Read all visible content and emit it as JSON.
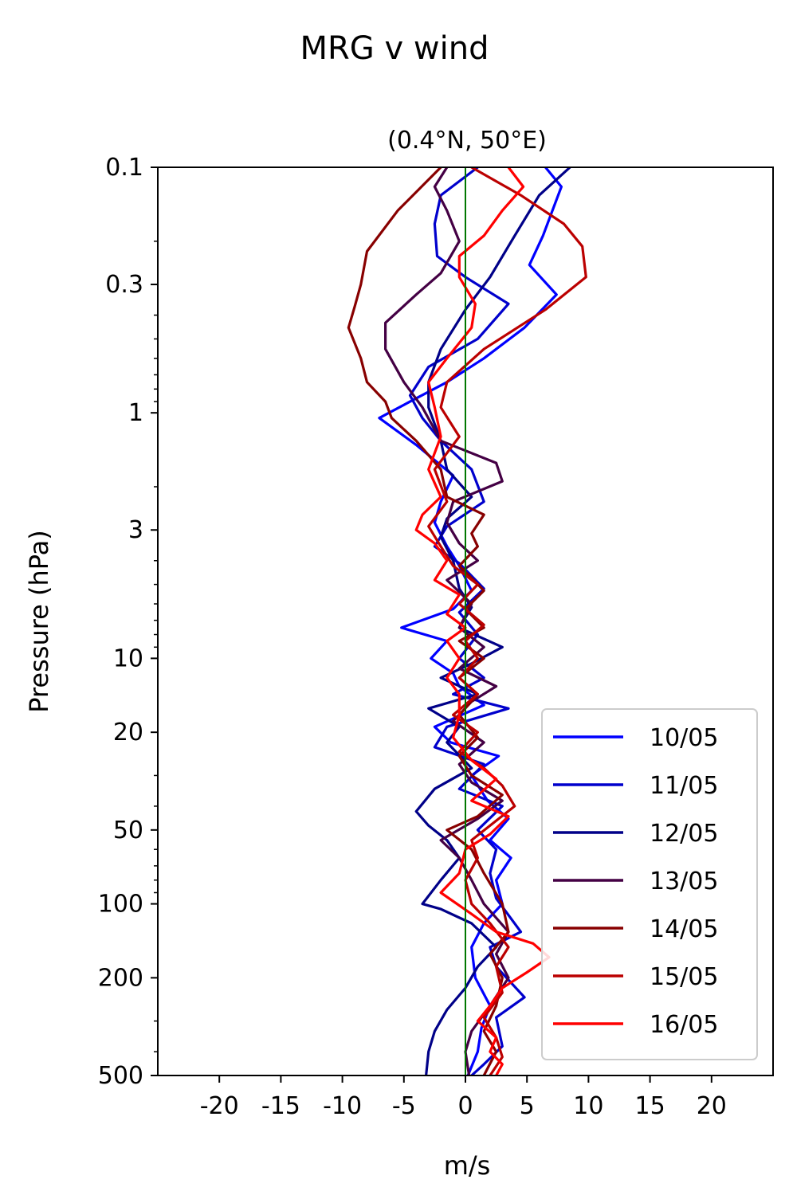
{
  "chart_data": {
    "type": "line",
    "title": "MRG v wind",
    "subtitle": "(0.4°N, 50°E)",
    "xlabel": "m/s",
    "ylabel": "Pressure (hPa)",
    "xlim": [
      -25,
      25
    ],
    "ylim": [
      500,
      0.1
    ],
    "yscale": "log",
    "x_ticks": [
      -20,
      -15,
      -10,
      -5,
      0,
      5,
      10,
      15,
      20
    ],
    "x_tick_labels": [
      "-20",
      "-15",
      "-10",
      "-5",
      "0",
      "5",
      "10",
      "15",
      "20"
    ],
    "y_ticks": [
      0.1,
      0.3,
      1,
      3,
      10,
      20,
      50,
      100,
      200,
      500
    ],
    "y_tick_labels": [
      "0.1",
      "0.3",
      "1",
      "3",
      "10",
      "20",
      "50",
      "100",
      "200",
      "500"
    ],
    "zero_line": {
      "x": 0,
      "color": "#007700"
    },
    "grid": false,
    "legend_position": "bottom-right",
    "series": [
      {
        "name": "10/05",
        "color": "#0000ff",
        "points": [
          [
            6.5,
            0.1
          ],
          [
            7.8,
            0.12
          ],
          [
            6.3,
            0.19
          ],
          [
            5.2,
            0.25
          ],
          [
            7.4,
            0.33
          ],
          [
            4.8,
            0.45
          ],
          [
            1.5,
            0.6
          ],
          [
            -1.5,
            0.75
          ],
          [
            -4.5,
            0.9
          ],
          [
            -7.0,
            1.05
          ],
          [
            -4.0,
            1.35
          ],
          [
            -1.0,
            1.8
          ],
          [
            -2.0,
            2.3
          ],
          [
            -2.5,
            2.8
          ],
          [
            -1.5,
            3.5
          ],
          [
            -0.5,
            4.2
          ],
          [
            0.5,
            5.3
          ],
          [
            -1.0,
            6.3
          ],
          [
            -5.2,
            7.5
          ],
          [
            -1.5,
            8.5
          ],
          [
            -2.8,
            10
          ],
          [
            -1.0,
            11.5
          ],
          [
            -0.5,
            13
          ],
          [
            1.5,
            15.5
          ],
          [
            -2.5,
            19
          ],
          [
            -1.2,
            22
          ],
          [
            2.7,
            25
          ],
          [
            0.5,
            30
          ],
          [
            1.8,
            38
          ],
          [
            3.5,
            45
          ],
          [
            2.0,
            55
          ],
          [
            3.7,
            65
          ],
          [
            2.5,
            80
          ],
          [
            3.0,
            100
          ],
          [
            1.5,
            120
          ],
          [
            0.5,
            150
          ],
          [
            0.8,
            200
          ],
          [
            2.0,
            260
          ],
          [
            1.3,
            320
          ],
          [
            1.0,
            400
          ],
          [
            0.2,
            500
          ]
        ]
      },
      {
        "name": "11/05",
        "color": "#0000cc",
        "points": [
          [
            1.0,
            0.1
          ],
          [
            -2.0,
            0.13
          ],
          [
            -2.5,
            0.17
          ],
          [
            -2.3,
            0.23
          ],
          [
            0,
            0.28
          ],
          [
            3.5,
            0.36
          ],
          [
            1.0,
            0.5
          ],
          [
            -3.0,
            0.65
          ],
          [
            -4.5,
            0.85
          ],
          [
            -3.5,
            1.05
          ],
          [
            -2.0,
            1.3
          ],
          [
            0.5,
            1.7
          ],
          [
            1.5,
            2.3
          ],
          [
            -1.5,
            2.9
          ],
          [
            -2.5,
            3.5
          ],
          [
            -0.5,
            4.1
          ],
          [
            1.5,
            5.2
          ],
          [
            -0.5,
            6.5
          ],
          [
            1.0,
            8
          ],
          [
            -0.5,
            10
          ],
          [
            1.5,
            12
          ],
          [
            -1.0,
            14
          ],
          [
            3.5,
            16
          ],
          [
            -1.5,
            19
          ],
          [
            -2.5,
            23
          ],
          [
            1.5,
            27
          ],
          [
            -0.5,
            34
          ],
          [
            3.0,
            40
          ],
          [
            1.0,
            50
          ],
          [
            2.5,
            60
          ],
          [
            2.0,
            75
          ],
          [
            2.5,
            95
          ],
          [
            4.5,
            130
          ],
          [
            2.0,
            150
          ],
          [
            2.5,
            180
          ],
          [
            4.8,
            240
          ],
          [
            2.5,
            290
          ],
          [
            3.0,
            380
          ],
          [
            1.5,
            450
          ],
          [
            0.5,
            500
          ]
        ]
      },
      {
        "name": "12/05",
        "color": "#000088",
        "points": [
          [
            8.5,
            0.1
          ],
          [
            6.0,
            0.13
          ],
          [
            4.0,
            0.19
          ],
          [
            2.0,
            0.28
          ],
          [
            0,
            0.38
          ],
          [
            -2.0,
            0.55
          ],
          [
            -3.0,
            0.75
          ],
          [
            -3.0,
            0.95
          ],
          [
            -2.0,
            1.3
          ],
          [
            -1.5,
            1.7
          ],
          [
            0.5,
            2.2
          ],
          [
            -1.5,
            2.7
          ],
          [
            -2.0,
            3.2
          ],
          [
            -1.0,
            4.0
          ],
          [
            -0.5,
            5.2
          ],
          [
            0.5,
            6.2
          ],
          [
            -0.5,
            7.5
          ],
          [
            3.0,
            9
          ],
          [
            0.5,
            10.5
          ],
          [
            -2.0,
            12
          ],
          [
            1.0,
            14
          ],
          [
            -3.0,
            16
          ],
          [
            -0.5,
            19
          ],
          [
            -1.5,
            22
          ],
          [
            0.5,
            28
          ],
          [
            -2.5,
            34
          ],
          [
            -4.0,
            42
          ],
          [
            -3.0,
            48
          ],
          [
            -1.5,
            55
          ],
          [
            -0.5,
            65
          ],
          [
            -2.0,
            80
          ],
          [
            -3.5,
            100
          ],
          [
            -2.0,
            105
          ],
          [
            0.5,
            120
          ],
          [
            2.5,
            150
          ],
          [
            1.0,
            180
          ],
          [
            0,
            220
          ],
          [
            -1.5,
            270
          ],
          [
            -2.5,
            330
          ],
          [
            -3.0,
            400
          ],
          [
            -3.2,
            500
          ]
        ]
      },
      {
        "name": "13/05",
        "color": "#440044",
        "points": [
          [
            -1.5,
            0.1
          ],
          [
            -2.5,
            0.12
          ],
          [
            -1.5,
            0.15
          ],
          [
            -0.5,
            0.2
          ],
          [
            -2.0,
            0.27
          ],
          [
            -4.0,
            0.33
          ],
          [
            -6.5,
            0.43
          ],
          [
            -6.5,
            0.55
          ],
          [
            -5.0,
            0.75
          ],
          [
            -3.5,
            0.95
          ],
          [
            -2.0,
            1.3
          ],
          [
            2.5,
            1.6
          ],
          [
            3.0,
            1.9
          ],
          [
            -1.0,
            2.3
          ],
          [
            -1.5,
            2.8
          ],
          [
            -0.5,
            3.4
          ],
          [
            1.0,
            4.0
          ],
          [
            -1.5,
            4.8
          ],
          [
            0.5,
            6.0
          ],
          [
            -0.5,
            7.5
          ],
          [
            1.5,
            9
          ],
          [
            -0.5,
            11
          ],
          [
            2.5,
            13
          ],
          [
            0.5,
            15
          ],
          [
            -1.0,
            18
          ],
          [
            1.5,
            22
          ],
          [
            -0.5,
            27
          ],
          [
            0.5,
            32
          ],
          [
            3.0,
            38
          ],
          [
            1.0,
            45
          ],
          [
            -2.0,
            55
          ],
          [
            -0.5,
            65
          ],
          [
            0.5,
            80
          ],
          [
            1.5,
            100
          ],
          [
            3.5,
            130
          ],
          [
            2.5,
            160
          ],
          [
            3.5,
            200
          ],
          [
            2.0,
            260
          ],
          [
            0.5,
            330
          ],
          [
            0,
            400
          ],
          [
            0.3,
            500
          ]
        ]
      },
      {
        "name": "14/05",
        "color": "#880000",
        "points": [
          [
            -2.0,
            0.1
          ],
          [
            -5.5,
            0.15
          ],
          [
            -8.0,
            0.22
          ],
          [
            -8.5,
            0.3
          ],
          [
            -9.0,
            0.37
          ],
          [
            -9.5,
            0.45
          ],
          [
            -8.5,
            0.6
          ],
          [
            -8.0,
            0.75
          ],
          [
            -6.5,
            0.9
          ],
          [
            -6.0,
            1.05
          ],
          [
            -4.0,
            1.3
          ],
          [
            -2.0,
            1.7
          ],
          [
            -1.5,
            2.2
          ],
          [
            1.5,
            2.6
          ],
          [
            0.5,
            3.1
          ],
          [
            1.0,
            3.5
          ],
          [
            -0.5,
            4.2
          ],
          [
            1.5,
            5.3
          ],
          [
            0,
            6.3
          ],
          [
            1.5,
            7.5
          ],
          [
            -0.5,
            8.5
          ],
          [
            1.5,
            10
          ],
          [
            -0.5,
            12
          ],
          [
            1.0,
            14
          ],
          [
            -0.5,
            17
          ],
          [
            1.0,
            21
          ],
          [
            -0.5,
            25
          ],
          [
            0.5,
            30
          ],
          [
            3.0,
            36
          ],
          [
            1.0,
            44
          ],
          [
            -1.5,
            50
          ],
          [
            0.5,
            60
          ],
          [
            1.5,
            75
          ],
          [
            3.0,
            100
          ],
          [
            3.5,
            130
          ],
          [
            2.0,
            160
          ],
          [
            3.0,
            200
          ],
          [
            2.5,
            260
          ],
          [
            1.5,
            330
          ],
          [
            2.5,
            400
          ],
          [
            1.5,
            500
          ]
        ]
      },
      {
        "name": "15/05",
        "color": "#bb0000",
        "points": [
          [
            0.5,
            0.1
          ],
          [
            4.5,
            0.13
          ],
          [
            8.0,
            0.17
          ],
          [
            9.5,
            0.21
          ],
          [
            9.8,
            0.28
          ],
          [
            6.5,
            0.38
          ],
          [
            1.5,
            0.55
          ],
          [
            -1.5,
            0.75
          ],
          [
            -2.0,
            0.95
          ],
          [
            -0.5,
            1.25
          ],
          [
            -2.5,
            1.7
          ],
          [
            -1.5,
            2.3
          ],
          [
            -3.0,
            2.9
          ],
          [
            -2.0,
            3.5
          ],
          [
            -1.0,
            4.2
          ],
          [
            1.0,
            5.0
          ],
          [
            -0.5,
            6.0
          ],
          [
            1.5,
            7.3
          ],
          [
            0,
            8.5
          ],
          [
            1.0,
            10
          ],
          [
            -0.5,
            12
          ],
          [
            1.0,
            14
          ],
          [
            -1.0,
            17
          ],
          [
            1.0,
            20
          ],
          [
            -0.5,
            24
          ],
          [
            1.5,
            28
          ],
          [
            3.0,
            33
          ],
          [
            4.0,
            40
          ],
          [
            2.0,
            48
          ],
          [
            0.5,
            55
          ],
          [
            1.0,
            65
          ],
          [
            0,
            80
          ],
          [
            0.5,
            100
          ],
          [
            2.0,
            120
          ],
          [
            3.5,
            150
          ],
          [
            2.5,
            180
          ],
          [
            3.0,
            230
          ],
          [
            1.5,
            290
          ],
          [
            2.5,
            350
          ],
          [
            3.0,
            420
          ],
          [
            2.0,
            500
          ]
        ]
      },
      {
        "name": "16/05",
        "color": "#ff0000",
        "points": [
          [
            3.5,
            0.1
          ],
          [
            4.7,
            0.12
          ],
          [
            3.0,
            0.15
          ],
          [
            1.5,
            0.19
          ],
          [
            -0.5,
            0.23
          ],
          [
            -0.5,
            0.28
          ],
          [
            0.8,
            0.36
          ],
          [
            0.5,
            0.45
          ],
          [
            -1.5,
            0.6
          ],
          [
            -3.0,
            0.75
          ],
          [
            -2.5,
            0.95
          ],
          [
            -2.0,
            1.25
          ],
          [
            -3.0,
            1.7
          ],
          [
            -2.0,
            2.2
          ],
          [
            -3.5,
            2.6
          ],
          [
            -4.0,
            3.0
          ],
          [
            -2.5,
            3.4
          ],
          [
            -1.5,
            4.0
          ],
          [
            -2.5,
            4.8
          ],
          [
            -0.5,
            5.5
          ],
          [
            -1.5,
            6.6
          ],
          [
            0,
            7.5
          ],
          [
            -1.5,
            8.5
          ],
          [
            -0.5,
            10
          ],
          [
            -1.5,
            12
          ],
          [
            -0.5,
            14
          ],
          [
            -0.5,
            17
          ],
          [
            -1.0,
            21
          ],
          [
            0.5,
            26
          ],
          [
            2.5,
            31
          ],
          [
            0.5,
            38
          ],
          [
            3.5,
            44
          ],
          [
            2.0,
            52
          ],
          [
            0,
            60
          ],
          [
            -0.5,
            75
          ],
          [
            -2.0,
            90
          ],
          [
            0.5,
            110
          ],
          [
            2.5,
            130
          ],
          [
            5.5,
            145
          ],
          [
            6.8,
            165
          ],
          [
            5.0,
            190
          ],
          [
            3.0,
            220
          ],
          [
            2.0,
            260
          ],
          [
            1.0,
            300
          ],
          [
            2.5,
            350
          ],
          [
            2.0,
            400
          ],
          [
            3.0,
            450
          ],
          [
            2.5,
            500
          ]
        ]
      }
    ]
  }
}
